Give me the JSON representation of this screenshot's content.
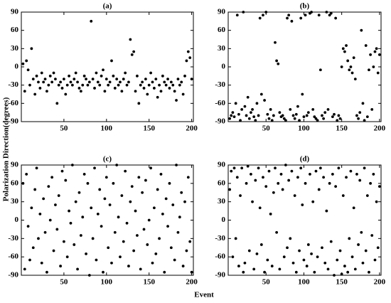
{
  "ylabel": "Polarization Direction(degrees)",
  "xlabel": "Event",
  "chart_data": [
    {
      "type": "scatter",
      "title": "(a)",
      "color": "#000000",
      "xlim": [
        0,
        202
      ],
      "ylim": [
        -90,
        90
      ],
      "xticks": [
        50,
        100,
        150,
        200
      ],
      "yticks": [
        -90,
        -60,
        -30,
        0,
        30,
        60,
        90
      ],
      "x": [
        2,
        4,
        6,
        8,
        10,
        12,
        14,
        16,
        18,
        20,
        22,
        24,
        26,
        28,
        30,
        32,
        34,
        36,
        38,
        40,
        42,
        44,
        46,
        48,
        50,
        52,
        54,
        56,
        58,
        60,
        62,
        64,
        66,
        68,
        70,
        72,
        74,
        76,
        78,
        80,
        82,
        84,
        86,
        88,
        90,
        92,
        94,
        96,
        98,
        100,
        102,
        104,
        106,
        108,
        110,
        112,
        114,
        116,
        118,
        120,
        122,
        124,
        126,
        128,
        130,
        132,
        134,
        136,
        138,
        140,
        142,
        144,
        146,
        148,
        150,
        152,
        154,
        156,
        158,
        160,
        162,
        164,
        166,
        168,
        170,
        172,
        174,
        176,
        178,
        180,
        182,
        184,
        186,
        188,
        190,
        192,
        194,
        196,
        198,
        200
      ],
      "values": [
        5,
        -40,
        10,
        -5,
        -30,
        30,
        -20,
        -45,
        -15,
        -25,
        -35,
        -10,
        -25,
        -20,
        -40,
        -30,
        -15,
        -25,
        -10,
        -20,
        -60,
        -30,
        -25,
        -35,
        -20,
        -45,
        -30,
        -15,
        -25,
        -30,
        -20,
        -10,
        -25,
        -35,
        -40,
        -30,
        -15,
        -20,
        -30,
        -25,
        75,
        -20,
        -35,
        -10,
        -25,
        -30,
        -15,
        -5,
        -40,
        -20,
        -30,
        -25,
        10,
        -15,
        -35,
        -20,
        -30,
        -25,
        -40,
        -20,
        -10,
        -30,
        -25,
        45,
        20,
        25,
        -40,
        -15,
        -60,
        -30,
        -25,
        -35,
        -20,
        -45,
        -30,
        -10,
        -25,
        -35,
        -20,
        -50,
        -30,
        -40,
        -15,
        -25,
        -30,
        -20,
        -35,
        -25,
        -30,
        -40,
        -55,
        -20,
        -30,
        -25,
        -45,
        -15,
        10,
        25,
        15,
        -20
      ]
    },
    {
      "type": "scatter",
      "title": "(b)",
      "color": "#000000",
      "xlim": [
        0,
        202
      ],
      "ylim": [
        -90,
        90
      ],
      "xticks": [
        50,
        100,
        150,
        200
      ],
      "yticks": [
        -90,
        -60,
        -30,
        0,
        30,
        60,
        90
      ],
      "x": [
        2,
        4,
        6,
        8,
        10,
        12,
        14,
        16,
        18,
        20,
        22,
        24,
        26,
        28,
        30,
        32,
        34,
        36,
        38,
        40,
        42,
        44,
        46,
        48,
        50,
        52,
        54,
        56,
        58,
        60,
        62,
        64,
        66,
        68,
        70,
        72,
        74,
        76,
        78,
        80,
        82,
        84,
        86,
        88,
        90,
        92,
        94,
        96,
        98,
        100,
        102,
        104,
        106,
        108,
        110,
        112,
        114,
        116,
        118,
        120,
        122,
        124,
        126,
        128,
        130,
        132,
        134,
        136,
        138,
        140,
        142,
        144,
        146,
        148,
        150,
        152,
        154,
        156,
        158,
        160,
        162,
        164,
        166,
        168,
        170,
        172,
        174,
        176,
        178,
        180,
        182,
        184,
        186,
        188,
        190,
        192,
        194,
        196,
        198,
        200
      ],
      "values": [
        -85,
        -80,
        -75,
        -82,
        -60,
        85,
        -78,
        -88,
        -70,
        90,
        -65,
        -80,
        -50,
        -85,
        -75,
        -70,
        -82,
        -88,
        -60,
        -80,
        80,
        -45,
        85,
        -55,
        90,
        -78,
        -85,
        -70,
        -88,
        -80,
        40,
        10,
        5,
        -75,
        -82,
        -80,
        -85,
        -88,
        80,
        85,
        -70,
        75,
        -80,
        -85,
        -78,
        -65,
        -88,
        80,
        -45,
        -82,
        85,
        -80,
        -75,
        88,
        90,
        -70,
        -82,
        -85,
        -88,
        85,
        -5,
        -80,
        -85,
        -75,
        90,
        -70,
        85,
        88,
        -82,
        -78,
        80,
        -88,
        -80,
        -85,
        0,
        30,
        25,
        35,
        10,
        -5,
        0,
        -10,
        15,
        -20,
        -80,
        -85,
        -75,
        60,
        -60,
        -88,
        35,
        -82,
        -5,
        20,
        -70,
        0,
        25,
        30,
        -10,
        20
      ]
    },
    {
      "type": "scatter",
      "title": "(c)",
      "color": "#000000",
      "xlim": [
        0,
        202
      ],
      "ylim": [
        -90,
        90
      ],
      "xticks": [
        50,
        100,
        150,
        200
      ],
      "yticks": [
        -90,
        -60,
        -30,
        0,
        30,
        60,
        90
      ],
      "x": [
        2,
        4,
        6,
        8,
        10,
        12,
        14,
        16,
        18,
        20,
        22,
        24,
        26,
        28,
        30,
        32,
        34,
        36,
        38,
        40,
        42,
        44,
        46,
        48,
        50,
        52,
        54,
        56,
        58,
        60,
        62,
        64,
        66,
        68,
        70,
        72,
        74,
        76,
        78,
        80,
        82,
        84,
        86,
        88,
        90,
        92,
        94,
        96,
        98,
        100,
        102,
        104,
        106,
        108,
        110,
        112,
        114,
        116,
        118,
        120,
        122,
        124,
        126,
        128,
        130,
        132,
        134,
        136,
        138,
        140,
        142,
        144,
        146,
        148,
        150,
        152,
        154,
        156,
        158,
        160,
        162,
        164,
        166,
        168,
        170,
        172,
        174,
        176,
        178,
        180,
        182,
        184,
        186,
        188,
        190,
        192,
        194,
        196,
        198,
        200
      ],
      "values": [
        60,
        -80,
        75,
        -10,
        -65,
        20,
        -45,
        50,
        85,
        -30,
        10,
        -70,
        35,
        -20,
        -85,
        55,
        0,
        70,
        -50,
        25,
        -15,
        40,
        -75,
        80,
        -35,
        65,
        -60,
        15,
        -5,
        90,
        -40,
        30,
        -80,
        45,
        -25,
        5,
        75,
        -55,
        60,
        -90,
        20,
        -30,
        85,
        -65,
        10,
        50,
        -10,
        -85,
        35,
        70,
        -45,
        25,
        -70,
        60,
        -20,
        90,
        5,
        -60,
        40,
        -35,
        80,
        -5,
        -75,
        30,
        55,
        -50,
        15,
        -25,
        70,
        -80,
        45,
        -15,
        65,
        -40,
        0,
        85,
        -70,
        20,
        -55,
        50,
        -30,
        75,
        10,
        -85,
        35,
        -10,
        60,
        -45,
        25,
        -65,
        90,
        -20,
        5,
        45,
        -75,
        30,
        -50,
        70,
        -35,
        -85
      ]
    },
    {
      "type": "scatter",
      "title": "(d)",
      "color": "#000000",
      "xlim": [
        0,
        202
      ],
      "ylim": [
        -90,
        90
      ],
      "xticks": [
        50,
        100,
        150,
        200
      ],
      "yticks": [
        -90,
        -60,
        -30,
        0,
        30,
        60,
        90
      ],
      "x": [
        2,
        4,
        6,
        8,
        10,
        12,
        14,
        16,
        18,
        20,
        22,
        24,
        26,
        28,
        30,
        32,
        34,
        36,
        38,
        40,
        42,
        44,
        46,
        48,
        50,
        52,
        54,
        56,
        58,
        60,
        62,
        64,
        66,
        68,
        70,
        72,
        74,
        76,
        78,
        80,
        82,
        84,
        86,
        88,
        90,
        92,
        94,
        96,
        98,
        100,
        102,
        104,
        106,
        108,
        110,
        112,
        114,
        116,
        118,
        120,
        122,
        124,
        126,
        128,
        130,
        132,
        134,
        136,
        138,
        140,
        142,
        144,
        146,
        148,
        150,
        152,
        154,
        156,
        158,
        160,
        162,
        164,
        166,
        168,
        170,
        172,
        174,
        176,
        178,
        180,
        182,
        184,
        186,
        188,
        190,
        192,
        194,
        196,
        198,
        200
      ],
      "values": [
        50,
        80,
        -60,
        85,
        -30,
        70,
        -75,
        40,
        85,
        -85,
        -70,
        60,
        88,
        -50,
        75,
        30,
        -80,
        65,
        -55,
        85,
        20,
        -40,
        70,
        -85,
        55,
        -65,
        80,
        10,
        -75,
        45,
        85,
        -20,
        60,
        -80,
        75,
        50,
        -60,
        90,
        -45,
        65,
        -30,
        80,
        -70,
        40,
        -85,
        70,
        -50,
        85,
        25,
        -65,
        60,
        -75,
        -40,
        75,
        -55,
        30,
        -85,
        80,
        -60,
        50,
        85,
        -45,
        70,
        -70,
        15,
        -80,
        60,
        -35,
        75,
        -90,
        55,
        -65,
        85,
        -50,
        -88,
        40,
        -75,
        70,
        -85,
        -30,
        80,
        -60,
        20,
        -80,
        75,
        -40,
        65,
        -20,
        -70,
        85,
        -50,
        40,
        -85,
        60,
        -25,
        75,
        -65,
        30,
        -45,
        55
      ]
    }
  ]
}
